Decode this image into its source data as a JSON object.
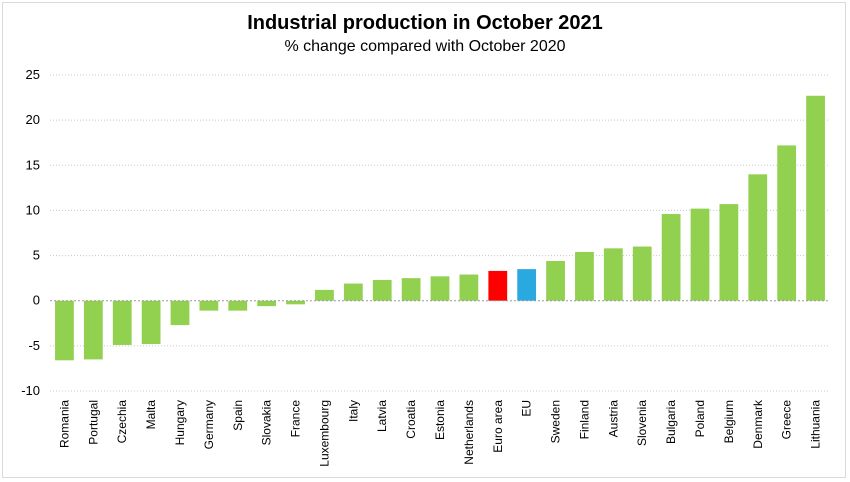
{
  "chart_data": {
    "type": "bar",
    "title": "Industrial production in October 2021",
    "subtitle": "% change compared with October 2020",
    "xlabel": "",
    "ylabel": "",
    "ylim": [
      -10,
      25
    ],
    "yticks": [
      -10,
      -5,
      0,
      5,
      10,
      15,
      20,
      25
    ],
    "yticks_labels": [
      "-10",
      "-5",
      "0",
      "5",
      "10",
      "15",
      "20",
      "25"
    ],
    "grid": "horizontal-dotted",
    "categories": [
      "Romania",
      "Portugal",
      "Czechia",
      "Malta",
      "Hungary",
      "Germany",
      "Spain",
      "Slovakia",
      "France",
      "Luxembourg",
      "Italy",
      "Latvia",
      "Croatia",
      "Estonia",
      "Netherlands",
      "Euro area",
      "EU",
      "Sweden",
      "Finland",
      "Austria",
      "Slovenia",
      "Bulgaria",
      "Poland",
      "Belgium",
      "Denmark",
      "Greece",
      "Lithuania"
    ],
    "values": [
      -6.6,
      -6.5,
      -4.9,
      -4.8,
      -2.7,
      -1.1,
      -1.1,
      -0.6,
      -0.4,
      1.2,
      1.9,
      2.3,
      2.5,
      2.7,
      2.9,
      3.3,
      3.5,
      4.4,
      5.4,
      5.8,
      6.0,
      9.6,
      10.2,
      10.7,
      14.0,
      17.2,
      22.7
    ],
    "colors": {
      "default": "#92d050",
      "Euro area": "#ff0000",
      "EU": "#2aa8e0"
    }
  }
}
